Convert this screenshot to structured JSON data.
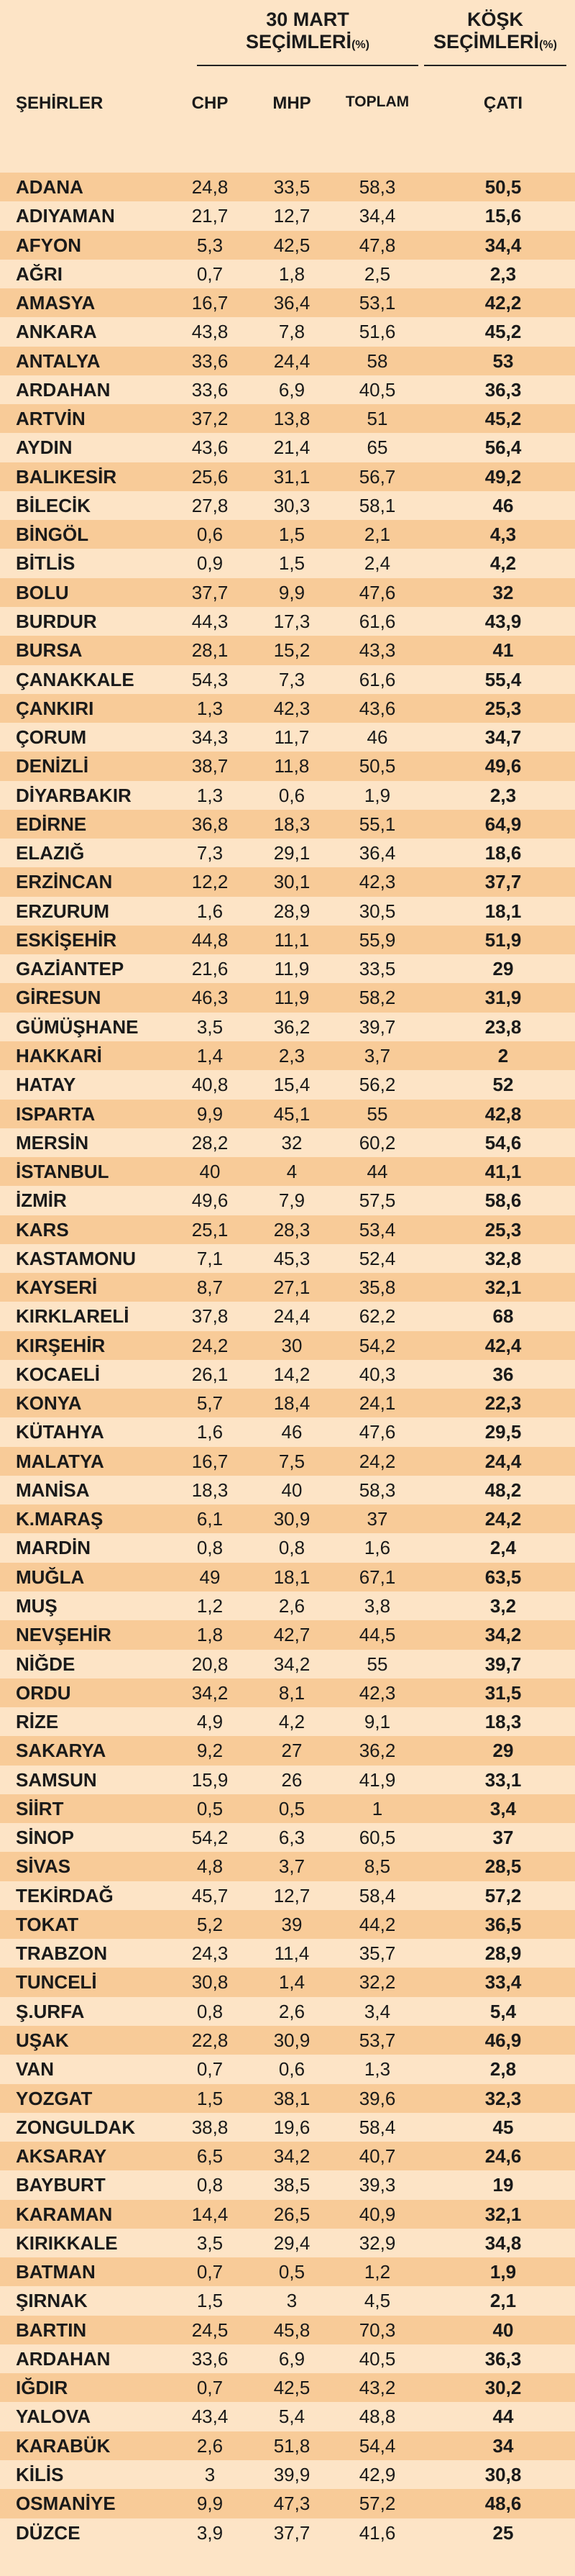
{
  "header": {
    "city": "ŞEHİRLER",
    "group1": [
      "30 MART",
      "SEÇİMLERİ"
    ],
    "group1_unit": "(%)",
    "group2": [
      "KÖŞK",
      "SEÇİMLERİ"
    ],
    "group2_unit": "(%)",
    "columns": [
      "CHP",
      "MHP",
      "TOPLAM",
      "ÇATI"
    ]
  },
  "table": {
    "rows": [
      [
        "ADANA",
        "24,8",
        "33,5",
        "58,3",
        "50,5"
      ],
      [
        "ADIYAMAN",
        "21,7",
        "12,7",
        "34,4",
        "15,6"
      ],
      [
        "AFYON",
        "5,3",
        "42,5",
        "47,8",
        "34,4"
      ],
      [
        "AĞRI",
        "0,7",
        "1,8",
        "2,5",
        "2,3"
      ],
      [
        "AMASYA",
        "16,7",
        "36,4",
        "53,1",
        "42,2"
      ],
      [
        "ANKARA",
        "43,8",
        "7,8",
        "51,6",
        "45,2"
      ],
      [
        "ANTALYA",
        "33,6",
        "24,4",
        "58",
        "53"
      ],
      [
        "ARDAHAN",
        "33,6",
        "6,9",
        "40,5",
        "36,3"
      ],
      [
        "ARTVİN",
        "37,2",
        "13,8",
        "51",
        "45,2"
      ],
      [
        "AYDIN",
        "43,6",
        "21,4",
        "65",
        "56,4"
      ],
      [
        "BALIKESİR",
        "25,6",
        "31,1",
        "56,7",
        "49,2"
      ],
      [
        "BİLECİK",
        "27,8",
        "30,3",
        "58,1",
        "46"
      ],
      [
        "BİNGÖL",
        "0,6",
        "1,5",
        "2,1",
        "4,3"
      ],
      [
        "BİTLİS",
        "0,9",
        "1,5",
        "2,4",
        "4,2"
      ],
      [
        "BOLU",
        "37,7",
        "9,9",
        "47,6",
        "32"
      ],
      [
        "BURDUR",
        "44,3",
        "17,3",
        "61,6",
        "43,9"
      ],
      [
        "BURSA",
        "28,1",
        "15,2",
        "43,3",
        "41"
      ],
      [
        "ÇANAKKALE",
        "54,3",
        "7,3",
        "61,6",
        "55,4"
      ],
      [
        "ÇANKIRI",
        "1,3",
        "42,3",
        "43,6",
        "25,3"
      ],
      [
        "ÇORUM",
        "34,3",
        "11,7",
        "46",
        "34,7"
      ],
      [
        "DENİZLİ",
        "38,7",
        "11,8",
        "50,5",
        "49,6"
      ],
      [
        "DİYARBAKIR",
        "1,3",
        "0,6",
        "1,9",
        "2,3"
      ],
      [
        "EDİRNE",
        "36,8",
        "18,3",
        "55,1",
        "64,9"
      ],
      [
        "ELAZIĞ",
        "7,3",
        "29,1",
        "36,4",
        "18,6"
      ],
      [
        "ERZİNCAN",
        "12,2",
        "30,1",
        "42,3",
        "37,7"
      ],
      [
        "ERZURUM",
        "1,6",
        "28,9",
        "30,5",
        "18,1"
      ],
      [
        "ESKİŞEHİR",
        "44,8",
        "11,1",
        "55,9",
        "51,9"
      ],
      [
        "GAZİANTEP",
        "21,6",
        "11,9",
        "33,5",
        "29"
      ],
      [
        "GİRESUN",
        "46,3",
        "11,9",
        "58,2",
        "31,9"
      ],
      [
        "GÜMÜŞHANE",
        "3,5",
        "36,2",
        "39,7",
        "23,8"
      ],
      [
        "HAKKARİ",
        "1,4",
        "2,3",
        "3,7",
        "2"
      ],
      [
        "HATAY",
        "40,8",
        "15,4",
        "56,2",
        "52"
      ],
      [
        "ISPARTA",
        "9,9",
        "45,1",
        "55",
        "42,8"
      ],
      [
        "MERSİN",
        "28,2",
        "32",
        "60,2",
        "54,6"
      ],
      [
        "İSTANBUL",
        "40",
        "4",
        "44",
        "41,1"
      ],
      [
        "İZMİR",
        "49,6",
        "7,9",
        "57,5",
        "58,6"
      ],
      [
        "KARS",
        "25,1",
        "28,3",
        "53,4",
        "25,3"
      ],
      [
        "KASTAMONU",
        "7,1",
        "45,3",
        "52,4",
        "32,8"
      ],
      [
        "KAYSERİ",
        "8,7",
        "27,1",
        "35,8",
        "32,1"
      ],
      [
        "KIRKLARELİ",
        "37,8",
        "24,4",
        "62,2",
        "68"
      ],
      [
        "KIRŞEHİR",
        "24,2",
        "30",
        "54,2",
        "42,4"
      ],
      [
        "KOCAELİ",
        "26,1",
        "14,2",
        "40,3",
        "36"
      ],
      [
        "KONYA",
        "5,7",
        "18,4",
        "24,1",
        "22,3"
      ],
      [
        "KÜTAHYA",
        "1,6",
        "46",
        "47,6",
        "29,5"
      ],
      [
        "MALATYA",
        "16,7",
        "7,5",
        "24,2",
        "24,4"
      ],
      [
        "MANİSA",
        "18,3",
        "40",
        "58,3",
        "48,2"
      ],
      [
        "K.MARAŞ",
        "6,1",
        "30,9",
        "37",
        "24,2"
      ],
      [
        "MARDİN",
        "0,8",
        "0,8",
        "1,6",
        "2,4"
      ],
      [
        "MUĞLA",
        "49",
        "18,1",
        "67,1",
        "63,5"
      ],
      [
        "MUŞ",
        "1,2",
        "2,6",
        "3,8",
        "3,2"
      ],
      [
        "NEVŞEHİR",
        "1,8",
        "42,7",
        "44,5",
        "34,2"
      ],
      [
        "NİĞDE",
        "20,8",
        "34,2",
        "55",
        "39,7"
      ],
      [
        "ORDU",
        "34,2",
        "8,1",
        "42,3",
        "31,5"
      ],
      [
        "RİZE",
        "4,9",
        "4,2",
        "9,1",
        "18,3"
      ],
      [
        "SAKARYA",
        "9,2",
        "27",
        "36,2",
        "29"
      ],
      [
        "SAMSUN",
        "15,9",
        "26",
        "41,9",
        "33,1"
      ],
      [
        "SİİRT",
        "0,5",
        "0,5",
        "1",
        "3,4"
      ],
      [
        "SİNOP",
        "54,2",
        "6,3",
        "60,5",
        "37"
      ],
      [
        "SİVAS",
        "4,8",
        "3,7",
        "8,5",
        "28,5"
      ],
      [
        "TEKİRDAĞ",
        "45,7",
        "12,7",
        "58,4",
        "57,2"
      ],
      [
        "TOKAT",
        "5,2",
        "39",
        "44,2",
        "36,5"
      ],
      [
        "TRABZON",
        "24,3",
        "11,4",
        "35,7",
        "28,9"
      ],
      [
        "TUNCELİ",
        "30,8",
        "1,4",
        "32,2",
        "33,4"
      ],
      [
        "Ş.URFA",
        "0,8",
        "2,6",
        "3,4",
        "5,4"
      ],
      [
        "UŞAK",
        "22,8",
        "30,9",
        "53,7",
        "46,9"
      ],
      [
        "VAN",
        "0,7",
        "0,6",
        "1,3",
        "2,8"
      ],
      [
        "YOZGAT",
        "1,5",
        "38,1",
        "39,6",
        "32,3"
      ],
      [
        "ZONGULDAK",
        "38,8",
        "19,6",
        "58,4",
        "45"
      ],
      [
        "AKSARAY",
        "6,5",
        "34,2",
        "40,7",
        "24,6"
      ],
      [
        "BAYBURT",
        "0,8",
        "38,5",
        "39,3",
        "19"
      ],
      [
        "KARAMAN",
        "14,4",
        "26,5",
        "40,9",
        "32,1"
      ],
      [
        "KIRIKKALE",
        "3,5",
        "29,4",
        "32,9",
        "34,8"
      ],
      [
        "BATMAN",
        "0,7",
        "0,5",
        "1,2",
        "1,9"
      ],
      [
        "ŞIRNAK",
        "1,5",
        "3",
        "4,5",
        "2,1"
      ],
      [
        "BARTIN",
        "24,5",
        "45,8",
        "70,3",
        "40"
      ],
      [
        "ARDAHAN",
        "33,6",
        "6,9",
        "40,5",
        "36,3"
      ],
      [
        "IĞDIR",
        "0,7",
        "42,5",
        "43,2",
        "30,2"
      ],
      [
        "YALOVA",
        "43,4",
        "5,4",
        "48,8",
        "44"
      ],
      [
        "KARABÜK",
        "2,6",
        "51,8",
        "54,4",
        "34"
      ],
      [
        "KİLİS",
        "3",
        "39,9",
        "42,9",
        "30,8"
      ],
      [
        "OSMANİYE",
        "9,9",
        "47,3",
        "57,2",
        "48,6"
      ],
      [
        "DÜZCE",
        "3,9",
        "37,7",
        "41,6",
        "25"
      ]
    ]
  }
}
